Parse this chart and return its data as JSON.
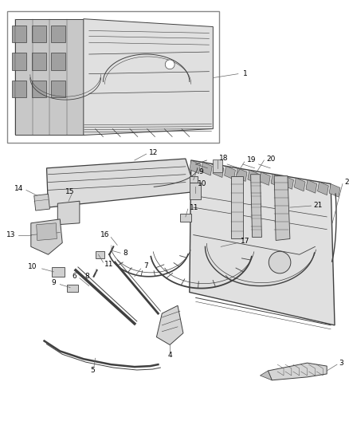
{
  "bg_color": "#ffffff",
  "line_color": "#404040",
  "label_color": "#000000",
  "fig_width": 4.38,
  "fig_height": 5.33,
  "dpi": 100,
  "fs": 6.5,
  "lw_main": 0.9,
  "lw_thin": 0.5,
  "lw_leader": 0.5,
  "fill_light": "#e8e8e8",
  "fill_mid": "#d0d0d0",
  "fill_dark": "#b8b8b8"
}
